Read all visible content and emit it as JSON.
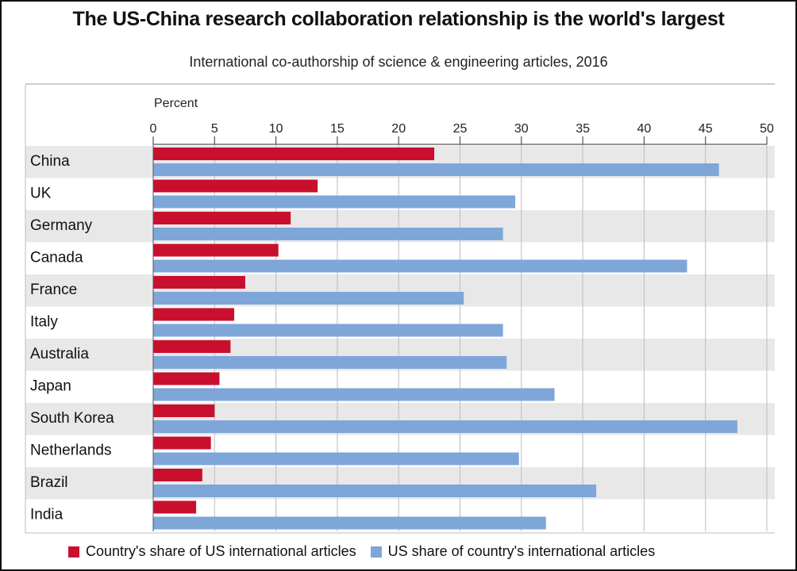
{
  "header": {
    "title": "The US-China research collaboration relationship is the world's largest",
    "subtitle": "International co-authorship of science & engineering articles, 2016"
  },
  "colors": {
    "series1": "#c8102e",
    "series2": "#7ea6d8",
    "band": "#e8e8e8",
    "grid": "#bcbcbc",
    "axis": "#555555"
  },
  "chart_data": {
    "type": "bar",
    "orientation": "horizontal",
    "title": "The US-China research collaboration relationship is the world's largest",
    "subtitle": "International co-authorship of science & engineering articles, 2016",
    "xlabel": "Percent",
    "ylabel": "",
    "xlim": [
      0,
      50
    ],
    "xticks": [
      0,
      5,
      10,
      15,
      20,
      25,
      30,
      35,
      40,
      45,
      50
    ],
    "grid": true,
    "legend_position": "bottom",
    "categories": [
      "China",
      "UK",
      "Germany",
      "Canada",
      "France",
      "Italy",
      "Australia",
      "Japan",
      "South Korea",
      "Netherlands",
      "Brazil",
      "India"
    ],
    "series": [
      {
        "name": "Country's share of US international articles",
        "color": "#c8102e",
        "values": [
          22.9,
          13.4,
          11.2,
          10.2,
          7.5,
          6.6,
          6.3,
          5.4,
          5.0,
          4.7,
          4.0,
          3.5
        ]
      },
      {
        "name": "US share of country's international articles",
        "color": "#7ea6d8",
        "values": [
          46.1,
          29.5,
          28.5,
          43.5,
          25.3,
          28.5,
          28.8,
          32.7,
          47.6,
          29.8,
          36.1,
          32.0
        ]
      }
    ]
  }
}
